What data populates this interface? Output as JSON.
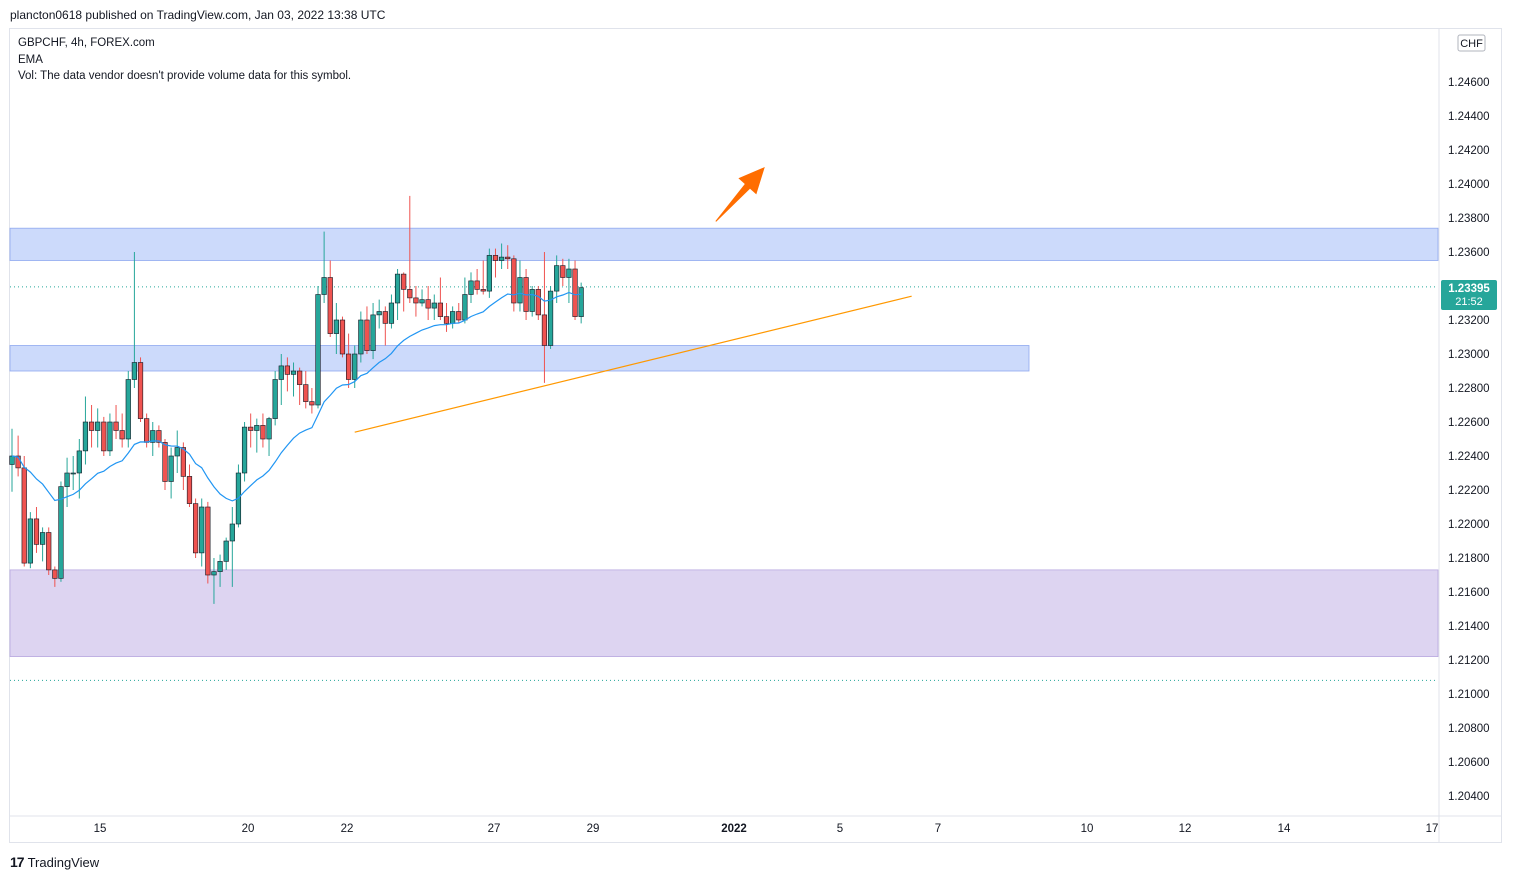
{
  "header": {
    "published": "plancton0618 published on TradingView.com, Jan 03, 2022 13:38 UTC"
  },
  "legend": {
    "symbol": "GBPCHF, 4h, FOREX.com",
    "ema": "EMA",
    "vol": "Vol: The data vendor doesn't provide volume data for this symbol."
  },
  "currency_tag": "CHF",
  "last_price": {
    "value": "1.23395",
    "countdown": "21:52"
  },
  "footer": {
    "brand": "TradingView",
    "logo": "tradingview-logo-icon"
  },
  "colors": {
    "up": "#26a69a",
    "down": "#ef5350",
    "ema": "#2196f3",
    "trendline": "#ff9800",
    "resistance_zone": "#b7cbfa",
    "support_zone": "#b7cbfa",
    "demand_zone": "#cfc2eb",
    "arrow": "#ff6d00",
    "price_tag": "#26a69a"
  },
  "chart_data": {
    "type": "candlestick",
    "y_axis": {
      "ticks": [
        "1.24600",
        "1.24400",
        "1.24200",
        "1.24000",
        "1.23800",
        "1.23600",
        "1.23200",
        "1.23000",
        "1.22800",
        "1.22600",
        "1.22400",
        "1.22200",
        "1.22000",
        "1.21800",
        "1.21600",
        "1.21400",
        "1.21200",
        "1.21000",
        "1.20800",
        "1.20600",
        "1.20400"
      ]
    },
    "x_axis": {
      "ticks": [
        "15",
        "20",
        "22",
        "27",
        "29",
        "2022",
        "5",
        "7",
        "10",
        "12",
        "14",
        "17"
      ]
    },
    "candles": [
      [
        1.2235,
        1.2256,
        1.2219,
        1.224
      ],
      [
        1.224,
        1.2252,
        1.2228,
        1.2233
      ],
      [
        1.2233,
        1.224,
        1.2175,
        1.2177
      ],
      [
        1.2177,
        1.2207,
        1.2174,
        1.2203
      ],
      [
        1.2203,
        1.221,
        1.2183,
        1.2188
      ],
      [
        1.2188,
        1.2198,
        1.2178,
        1.2195
      ],
      [
        1.2195,
        1.2198,
        1.217,
        1.2173
      ],
      [
        1.2173,
        1.2175,
        1.2163,
        1.2168
      ],
      [
        1.2168,
        1.2225,
        1.2166,
        1.2222
      ],
      [
        1.2222,
        1.2239,
        1.221,
        1.223
      ],
      [
        1.223,
        1.224,
        1.222,
        1.223
      ],
      [
        1.223,
        1.225,
        1.2215,
        1.2243
      ],
      [
        1.2243,
        1.2275,
        1.2235,
        1.226
      ],
      [
        1.226,
        1.227,
        1.2245,
        1.2255
      ],
      [
        1.2255,
        1.2268,
        1.2245,
        1.226
      ],
      [
        1.226,
        1.2263,
        1.224,
        1.2243
      ],
      [
        1.2243,
        1.2265,
        1.224,
        1.226
      ],
      [
        1.226,
        1.227,
        1.225,
        1.2255
      ],
      [
        1.2255,
        1.2265,
        1.2245,
        1.225
      ],
      [
        1.225,
        1.229,
        1.2245,
        1.2285
      ],
      [
        1.2285,
        1.236,
        1.228,
        1.2295
      ],
      [
        1.2295,
        1.2298,
        1.226,
        1.2262
      ],
      [
        1.2262,
        1.2265,
        1.2245,
        1.2248
      ],
      [
        1.2248,
        1.226,
        1.224,
        1.2255
      ],
      [
        1.2255,
        1.2258,
        1.2245,
        1.2248
      ],
      [
        1.2248,
        1.225,
        1.222,
        1.2225
      ],
      [
        1.2225,
        1.2245,
        1.2215,
        1.224
      ],
      [
        1.224,
        1.2255,
        1.223,
        1.2245
      ],
      [
        1.2245,
        1.2248,
        1.222,
        1.2228
      ],
      [
        1.2228,
        1.2235,
        1.221,
        1.2212
      ],
      [
        1.2212,
        1.2215,
        1.218,
        1.2183
      ],
      [
        1.2183,
        1.2215,
        1.2175,
        1.221
      ],
      [
        1.221,
        1.2213,
        1.2165,
        1.217
      ],
      [
        1.217,
        1.218,
        1.2153,
        1.2172
      ],
      [
        1.2172,
        1.2182,
        1.2163,
        1.2178
      ],
      [
        1.2178,
        1.2192,
        1.2173,
        1.219
      ],
      [
        1.219,
        1.221,
        1.2163,
        1.22
      ],
      [
        1.22,
        1.2235,
        1.2198,
        1.223
      ],
      [
        1.223,
        1.226,
        1.2225,
        1.2257
      ],
      [
        1.2257,
        1.2265,
        1.2245,
        1.2255
      ],
      [
        1.2255,
        1.2262,
        1.2242,
        1.2258
      ],
      [
        1.2258,
        1.2265,
        1.2245,
        1.225
      ],
      [
        1.225,
        1.2263,
        1.224,
        1.2262
      ],
      [
        1.2262,
        1.229,
        1.2258,
        1.2285
      ],
      [
        1.2285,
        1.23,
        1.227,
        1.2293
      ],
      [
        1.2293,
        1.2298,
        1.2278,
        1.2288
      ],
      [
        1.2288,
        1.2295,
        1.2275,
        1.229
      ],
      [
        1.229,
        1.2292,
        1.227,
        1.2282
      ],
      [
        1.2282,
        1.229,
        1.2268,
        1.2272
      ],
      [
        1.2272,
        1.228,
        1.2265,
        1.227
      ],
      [
        1.227,
        1.234,
        1.2268,
        1.2335
      ],
      [
        1.2335,
        1.2372,
        1.233,
        1.2345
      ],
      [
        1.2345,
        1.2355,
        1.231,
        1.2312
      ],
      [
        1.2312,
        1.233,
        1.23,
        1.232
      ],
      [
        1.232,
        1.2322,
        1.2298,
        1.23
      ],
      [
        1.23,
        1.2312,
        1.228,
        1.2285
      ],
      [
        1.2285,
        1.2305,
        1.228,
        1.23
      ],
      [
        1.23,
        1.2325,
        1.2295,
        1.232
      ],
      [
        1.232,
        1.2328,
        1.23,
        1.2302
      ],
      [
        1.2302,
        1.233,
        1.2297,
        1.2323
      ],
      [
        1.2323,
        1.2332,
        1.2315,
        1.2325
      ],
      [
        1.2325,
        1.2328,
        1.2305,
        1.2318
      ],
      [
        1.2318,
        1.2335,
        1.2315,
        1.233
      ],
      [
        1.233,
        1.235,
        1.232,
        1.2347
      ],
      [
        1.2347,
        1.2348,
        1.2325,
        1.2338
      ],
      [
        1.2338,
        1.2393,
        1.233,
        1.2333
      ],
      [
        1.2333,
        1.234,
        1.2322,
        1.233
      ],
      [
        1.233,
        1.2338,
        1.2328,
        1.2332
      ],
      [
        1.2332,
        1.234,
        1.232,
        1.2327
      ],
      [
        1.2327,
        1.2335,
        1.232,
        1.233
      ],
      [
        1.233,
        1.2345,
        1.232,
        1.2322
      ],
      [
        1.2322,
        1.233,
        1.2313,
        1.2318
      ],
      [
        1.2318,
        1.2328,
        1.2315,
        1.2325
      ],
      [
        1.2325,
        1.233,
        1.2318,
        1.232
      ],
      [
        1.232,
        1.2345,
        1.2318,
        1.2335
      ],
      [
        1.2335,
        1.2348,
        1.233,
        1.2343
      ],
      [
        1.2343,
        1.235,
        1.2335,
        1.2338
      ],
      [
        1.2338,
        1.2355,
        1.2335,
        1.2337
      ],
      [
        1.2337,
        1.2362,
        1.2333,
        1.2358
      ],
      [
        1.2358,
        1.2362,
        1.2345,
        1.2355
      ],
      [
        1.2355,
        1.2365,
        1.235,
        1.2357
      ],
      [
        1.2357,
        1.2364,
        1.235,
        1.2356
      ],
      [
        1.2356,
        1.2358,
        1.2325,
        1.233
      ],
      [
        1.233,
        1.2355,
        1.2325,
        1.2345
      ],
      [
        1.2345,
        1.235,
        1.232,
        1.2325
      ],
      [
        1.2325,
        1.234,
        1.2322,
        1.2338
      ],
      [
        1.2338,
        1.234,
        1.232,
        1.2323
      ],
      [
        1.2323,
        1.236,
        1.2283,
        1.2305
      ],
      [
        1.2305,
        1.234,
        1.2303,
        1.2337
      ],
      [
        1.2337,
        1.2358,
        1.233,
        1.2352
      ],
      [
        1.2352,
        1.2356,
        1.234,
        1.2345
      ],
      [
        1.2345,
        1.2356,
        1.233,
        1.235
      ],
      [
        1.235,
        1.2355,
        1.232,
        1.2322
      ],
      [
        1.2322,
        1.2342,
        1.2318,
        1.2339
      ]
    ],
    "ema_note": "EMA line follows a ~20-period exponential average of closes",
    "zones": [
      {
        "name": "resistance",
        "y_from": 1.2355,
        "y_to": 1.2374
      },
      {
        "name": "support",
        "y_from": 1.229,
        "y_to": 1.2305
      },
      {
        "name": "demand",
        "y_from": 1.2122,
        "y_to": 1.2173
      }
    ],
    "dotted_levels": [
      1.23395,
      1.2108
    ],
    "trendline": {
      "from": [
        19,
        1.2254
      ],
      "to": [
        135,
        1.2334
      ]
    },
    "arrow": {
      "from": [
        104,
        1.2378
      ],
      "to": [
        110,
        1.241
      ]
    }
  }
}
